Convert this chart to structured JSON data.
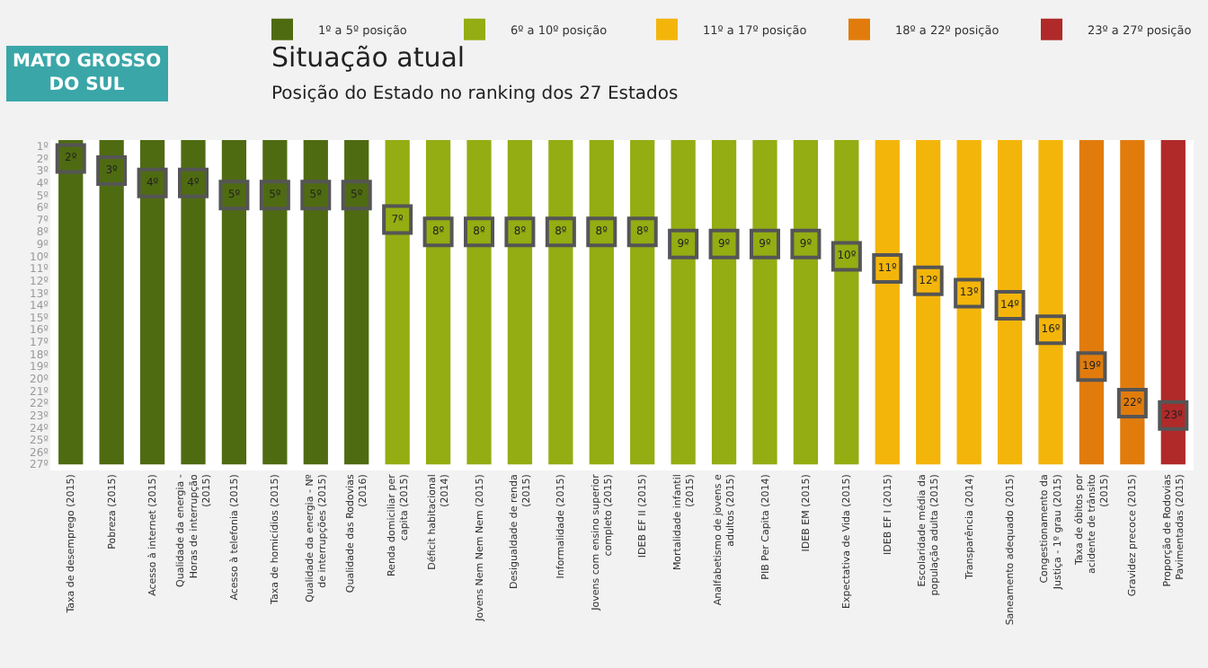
{
  "chart_data": {
    "type": "bar",
    "title": "Situação atual",
    "subtitle": "Posição do Estado no ranking dos 27 Estados",
    "annotations": [
      "MATO GROSSO DO SUL"
    ],
    "categories": [
      "Taxa de desemprego (2015)",
      "Pobreza (2015)",
      "Acesso à internet (2015)",
      "Qualidade da energia - Horas de interrupção (2015)",
      "Acesso à telefonia (2015)",
      "Taxa de homicídios (2015)",
      "Qualidade da energia - Nº de interrupções (2015)",
      "Qualidade das Rodovias (2016)",
      "Renda domiciliar per capita (2015)",
      "Déficit habitacional (2014)",
      "Jovens Nem Nem Nem (2015)",
      "Desigualdade de renda (2015)",
      "Informalidade (2015)",
      "Jovens com ensino superior completo (2015)",
      "IDEB EF II (2015)",
      "Mortalidade infantil (2015)",
      "Analfabetismo de jovens e adultos (2015)",
      "PIB Per Capita (2014)",
      "IDEB EM (2015)",
      "Expectativa de Vida (2015)",
      "IDEB EF I (2015)",
      "Escolaridade média da população adulta (2015)",
      "Transparência (2014)",
      "Saneamento adequado (2015)",
      "Congestionamento da Justiça - 1º grau (2015)",
      "Taxa de óbitos por acidente de trânsito (2015)",
      "Gravidez precoce (2015)",
      "Proporção de Rodovias Pavimentadas (2015)"
    ],
    "series": [
      {
        "name": "1º a 5º posição",
        "color": "#4f6b12",
        "values": [
          27,
          27,
          27,
          27,
          27,
          27,
          27,
          27,
          null,
          null,
          null,
          null,
          null,
          null,
          null,
          null,
          null,
          null,
          null,
          null,
          null,
          null,
          null,
          null,
          null,
          null,
          null,
          null
        ]
      },
      {
        "name": "6º a 10º posição",
        "color": "#93ad12",
        "values": [
          null,
          null,
          null,
          null,
          null,
          null,
          null,
          null,
          27,
          27,
          27,
          27,
          27,
          27,
          27,
          27,
          27,
          27,
          27,
          27,
          null,
          null,
          null,
          null,
          null,
          null,
          null,
          null
        ]
      },
      {
        "name": "11º a 17º posição",
        "color": "#f4b50a",
        "values": [
          null,
          null,
          null,
          null,
          null,
          null,
          null,
          null,
          null,
          null,
          null,
          null,
          null,
          null,
          null,
          null,
          null,
          null,
          null,
          null,
          27,
          27,
          27,
          27,
          27,
          null,
          null,
          null
        ]
      },
      {
        "name": "18º a 22º posição",
        "color": "#e17c0c",
        "values": [
          null,
          null,
          null,
          null,
          null,
          null,
          null,
          null,
          null,
          null,
          null,
          null,
          null,
          null,
          null,
          null,
          null,
          null,
          null,
          null,
          null,
          null,
          null,
          null,
          null,
          27,
          27,
          null
        ]
      },
      {
        "name": "23º a 27º posição",
        "color": "#b02a2a",
        "values": [
          null,
          null,
          null,
          null,
          null,
          null,
          null,
          null,
          null,
          null,
          null,
          null,
          null,
          null,
          null,
          null,
          null,
          null,
          null,
          null,
          null,
          null,
          null,
          null,
          null,
          null,
          null,
          27
        ]
      },
      {
        "type": "scatter",
        "color": "#555555",
        "values": [
          2,
          3,
          4,
          4,
          5,
          5,
          5,
          5,
          7,
          8,
          8,
          8,
          8,
          8,
          8,
          9,
          9,
          9,
          9,
          10,
          11,
          12,
          13,
          14,
          16,
          19,
          22,
          23
        ],
        "value_labels": [
          "2º",
          "3º",
          "4º",
          "4º",
          "5º",
          "5º",
          "5º",
          "5º",
          "7º",
          "8º",
          "8º",
          "8º",
          "8º",
          "8º",
          "8º",
          "9º",
          "9º",
          "9º",
          "9º",
          "10º",
          "11º",
          "12º",
          "13º",
          "14º",
          "16º",
          "19º",
          "22º",
          "23º"
        ]
      }
    ],
    "ylim": [
      27.5,
      0.5
    ],
    "yticks": [
      {
        "value": 1,
        "label": "1º"
      },
      {
        "value": 2,
        "label": "2º"
      },
      {
        "value": 3,
        "label": "3º"
      },
      {
        "value": 4,
        "label": "4º"
      },
      {
        "value": 5,
        "label": "5º"
      },
      {
        "value": 6,
        "label": "6º"
      },
      {
        "value": 7,
        "label": "7º"
      },
      {
        "value": 8,
        "label": "8º"
      },
      {
        "value": 9,
        "label": "9º"
      },
      {
        "value": 10,
        "label": "10º"
      },
      {
        "value": 11,
        "label": "11º"
      },
      {
        "value": 12,
        "label": "12º"
      },
      {
        "value": 13,
        "label": "13º"
      },
      {
        "value": 14,
        "label": "14º"
      },
      {
        "value": 15,
        "label": "15º"
      },
      {
        "value": 16,
        "label": "16º"
      },
      {
        "value": 17,
        "label": "17º"
      },
      {
        "value": 18,
        "label": "18º"
      },
      {
        "value": 19,
        "label": "19º"
      },
      {
        "value": 20,
        "label": "20º"
      },
      {
        "value": 21,
        "label": "21º"
      },
      {
        "value": 22,
        "label": "22º"
      },
      {
        "value": 23,
        "label": "23º"
      },
      {
        "value": 24,
        "label": "24º"
      },
      {
        "value": 25,
        "label": "25º"
      },
      {
        "value": 26,
        "label": "26º"
      },
      {
        "value": 27,
        "label": "27º"
      }
    ],
    "marker": "square",
    "legend": "top right"
  }
}
